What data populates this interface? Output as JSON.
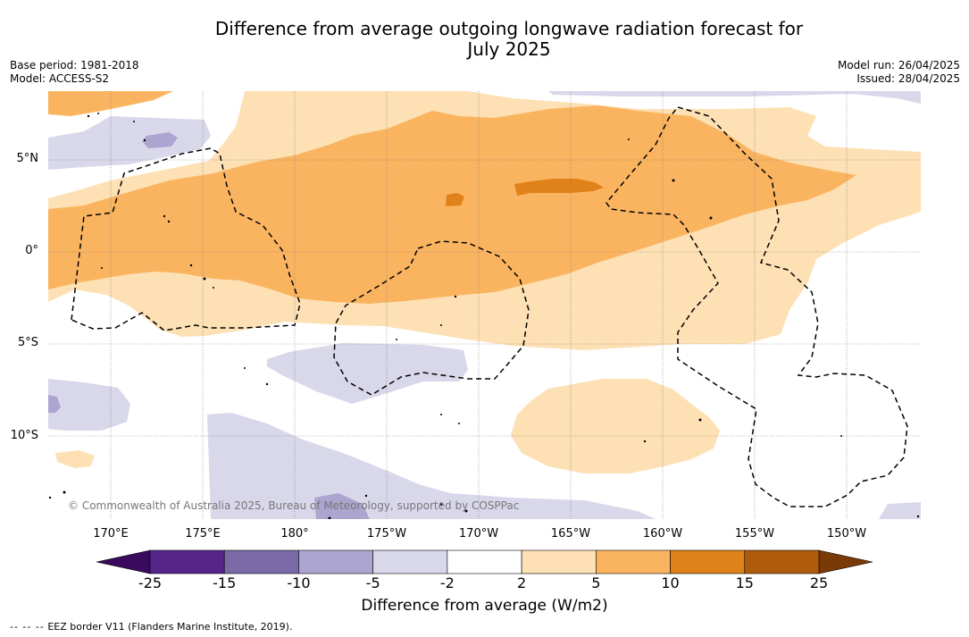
{
  "title": {
    "line1": "Difference from average outgoing longwave radiation forecast for",
    "line2": "July 2025"
  },
  "meta_left": {
    "base_period": "Base period: 1981-2018",
    "model": "Model: ACCESS-S2"
  },
  "meta_right": {
    "model_run": "Model run: 26/04/2025",
    "issued": "Issued: 28/04/2025"
  },
  "latitude_labels": [
    "5°N",
    "0°",
    "5°S",
    "10°S"
  ],
  "longitude_labels": [
    "170°E",
    "175°E",
    "180°",
    "175°W",
    "170°W",
    "165°W",
    "160°W",
    "155°W",
    "150°W"
  ],
  "copyright": "© Commonwealth of Australia 2025, Bureau of Meteorology, supported by COSPPac",
  "colorbar": {
    "ticks": [
      "-25",
      "-15",
      "-10",
      "-5",
      "-2",
      "2",
      "5",
      "10",
      "15",
      "25"
    ],
    "colors": [
      "#55258a",
      "#7b6aa8",
      "#aba5cf",
      "#d9d8eb",
      "#ffffff",
      "#fde0b4",
      "#fab460",
      "#e0821a",
      "#b05a0c"
    ],
    "extend_low_color": "#3a0a5e",
    "extend_high_color": "#7a3a05",
    "label": "Difference from average (W/m2)"
  },
  "footnote": {
    "dash_symbol": "--  --  --",
    "text": "EEZ border V11 (Flanders Marine Institute, 2019)."
  }
}
